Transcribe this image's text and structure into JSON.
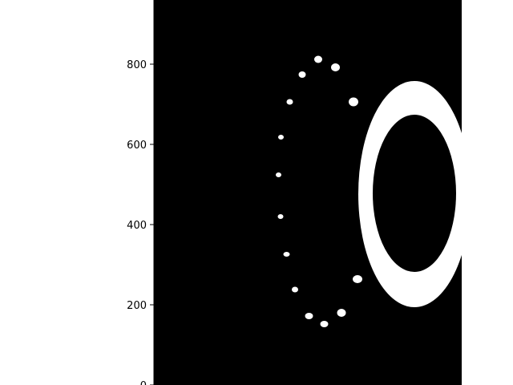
{
  "chart_data": {
    "type": "image",
    "yticks": [
      "0",
      "200",
      "400",
      "600",
      "800"
    ],
    "ylim": [
      0,
      960
    ],
    "xlim": [
      0,
      768
    ],
    "grid": false,
    "colors": {
      "background": "#000000",
      "foreground": "#ffffff",
      "axis": "#000000"
    },
    "blobs": [
      {
        "x": 410,
        "y": 812,
        "rx": 10,
        "ry": 9
      },
      {
        "x": 453,
        "y": 792,
        "rx": 11,
        "ry": 10
      },
      {
        "x": 370,
        "y": 774,
        "rx": 9,
        "ry": 8
      },
      {
        "x": 339,
        "y": 706,
        "rx": 8,
        "ry": 7
      },
      {
        "x": 498,
        "y": 706,
        "rx": 12,
        "ry": 11
      },
      {
        "x": 317,
        "y": 618,
        "rx": 7,
        "ry": 6
      },
      {
        "x": 533,
        "y": 562,
        "rx": 13,
        "ry": 12
      },
      {
        "x": 311,
        "y": 524,
        "rx": 7,
        "ry": 6
      },
      {
        "x": 316,
        "y": 420,
        "rx": 7,
        "ry": 6
      },
      {
        "x": 540,
        "y": 400,
        "rx": 13,
        "ry": 11
      },
      {
        "x": 331,
        "y": 326,
        "rx": 8,
        "ry": 6
      },
      {
        "x": 508,
        "y": 264,
        "rx": 12,
        "ry": 10
      },
      {
        "x": 352,
        "y": 238,
        "rx": 8,
        "ry": 7
      },
      {
        "x": 387,
        "y": 172,
        "rx": 10,
        "ry": 8
      },
      {
        "x": 468,
        "y": 180,
        "rx": 11,
        "ry": 10
      },
      {
        "x": 425,
        "y": 152,
        "rx": 10,
        "ry": 8
      }
    ],
    "ring": {
      "cx": 650,
      "cy": 476,
      "outer_rx": 140,
      "outer_ry": 282,
      "inner_rx": 104,
      "inner_ry": 196,
      "inner_cy": 478
    }
  }
}
